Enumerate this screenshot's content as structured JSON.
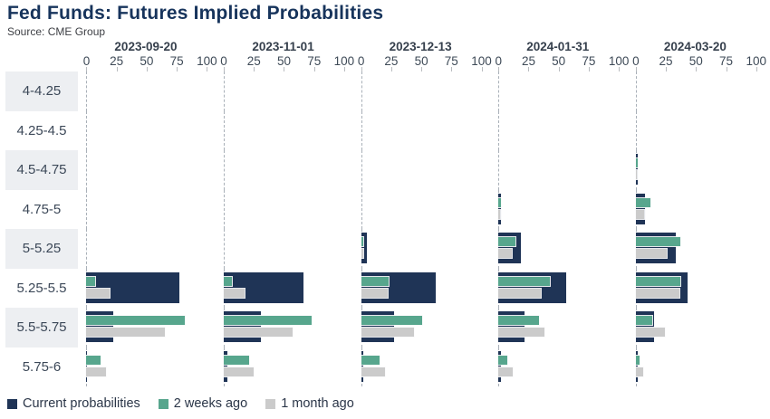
{
  "title": "Fed Funds: Futures Implied Probabilities",
  "source": "Source: CME Group",
  "colors": {
    "current": "#1f3456",
    "two_weeks": "#57a68d",
    "one_month": "#cbcbcb",
    "title_navy": "#17345c",
    "stripe_gray": "#e9ecef",
    "stripe_light": "#f5f6f8"
  },
  "legend": [
    {
      "label": "Current probabilities",
      "color": "#1f3456"
    },
    {
      "label": "2 weeks ago",
      "color": "#57a68d"
    },
    {
      "label": "1 month ago",
      "color": "#cbcbcb"
    }
  ],
  "chart_data": {
    "type": "bar",
    "orientation": "horizontal",
    "title": "Fed Funds: Futures Implied Probabilities",
    "subtitle": "Source: CME Group",
    "categories": [
      "4-4.25",
      "4.25-4.5",
      "4.5-4.75",
      "4.75-5",
      "5-5.25",
      "5.25-5.5",
      "5.5-5.75",
      "5.75-6"
    ],
    "x_ticks": [
      0,
      25,
      50,
      75,
      100
    ],
    "xlim": [
      0,
      100
    ],
    "grid": true,
    "legend_position": "bottom",
    "series_names": [
      "Current probabilities",
      "2 weeks ago",
      "1 month ago"
    ],
    "panels": [
      {
        "date": "2023-09-20",
        "series": [
          {
            "name": "Current probabilities",
            "values": [
              0,
              0,
              0,
              0,
              0,
              77,
              22,
              0.5
            ]
          },
          {
            "name": "2 weeks ago",
            "values": [
              0,
              0,
              0,
              0,
              0,
              7,
              82,
              12
            ]
          },
          {
            "name": "1 month ago",
            "values": [
              0,
              0,
              0,
              0,
              0,
              19,
              65,
              16
            ]
          }
        ]
      },
      {
        "date": "2023-11-01",
        "series": [
          {
            "name": "Current probabilities",
            "values": [
              0,
              0,
              0,
              0,
              0,
              66,
              31,
              3
            ]
          },
          {
            "name": "2 weeks ago",
            "values": [
              0,
              0,
              0,
              0,
              0,
              7,
              73,
              21
            ]
          },
          {
            "name": "1 month ago",
            "values": [
              0,
              0,
              0,
              0,
              0,
              17,
              57,
              25
            ]
          }
        ]
      },
      {
        "date": "2023-12-13",
        "series": [
          {
            "name": "Current probabilities",
            "values": [
              0,
              0,
              0,
              0,
              5,
              62,
              27,
              2
            ]
          },
          {
            "name": "2 weeks ago",
            "values": [
              0,
              0,
              0,
              0,
              2,
              23,
              51,
              15
            ]
          },
          {
            "name": "1 month ago",
            "values": [
              0,
              0,
              0,
              0,
              2,
              22,
              44,
              20
            ]
          }
        ]
      },
      {
        "date": "2024-01-31",
        "series": [
          {
            "name": "Current probabilities",
            "values": [
              0,
              0,
              0,
              2,
              19,
              56,
              22,
              2
            ]
          },
          {
            "name": "2 weeks ago",
            "values": [
              0,
              0,
              0,
              2,
              14,
              43,
              34,
              7
            ]
          },
          {
            "name": "1 month ago",
            "values": [
              0,
              0,
              0,
              1.5,
              11,
              35,
              38,
              12
            ]
          }
        ]
      },
      {
        "date": "2024-03-20",
        "series": [
          {
            "name": "Current probabilities",
            "values": [
              0,
              0,
              1.5,
              8,
              33,
              43,
              15,
              1.5
            ]
          },
          {
            "name": "2 weeks ago",
            "values": [
              0,
              0,
              1.5,
              12,
              37,
              37,
              14,
              3
            ]
          },
          {
            "name": "1 month ago",
            "values": [
              0,
              0,
              1,
              7,
              26,
              36,
              24,
              6
            ]
          }
        ]
      }
    ]
  }
}
